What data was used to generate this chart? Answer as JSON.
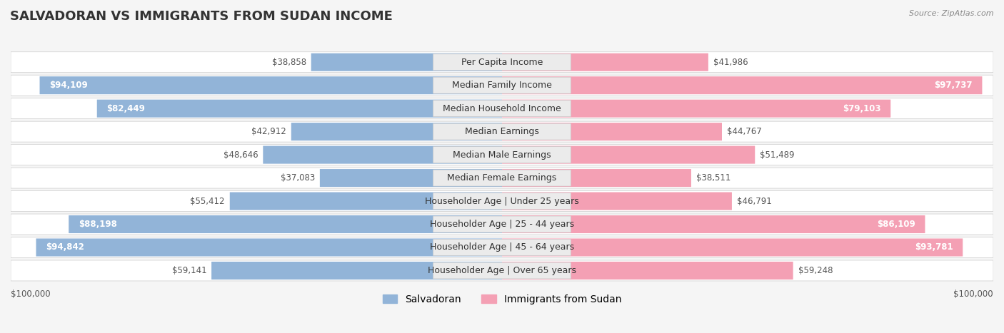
{
  "title": "SALVADORAN VS IMMIGRANTS FROM SUDAN INCOME",
  "source": "Source: ZipAtlas.com",
  "categories": [
    "Per Capita Income",
    "Median Family Income",
    "Median Household Income",
    "Median Earnings",
    "Median Male Earnings",
    "Median Female Earnings",
    "Householder Age | Under 25 years",
    "Householder Age | 25 - 44 years",
    "Householder Age | 45 - 64 years",
    "Householder Age | Over 65 years"
  ],
  "salvadoran_values": [
    38858,
    94109,
    82449,
    42912,
    48646,
    37083,
    55412,
    88198,
    94842,
    59141
  ],
  "sudan_values": [
    41986,
    97737,
    79103,
    44767,
    51489,
    38511,
    46791,
    86109,
    93781,
    59248
  ],
  "salvadoran_color": "#92b4d8",
  "sudan_color": "#f4a0b4",
  "salvadoran_color_dark": "#5a8fc0",
  "sudan_color_dark": "#e8607a",
  "max_value": 100000,
  "background_color": "#f5f5f5",
  "row_bg_color": "#ffffff",
  "label_bg_color": "#e8e8e8",
  "label_font_size": 9,
  "title_font_size": 13,
  "value_font_size": 8.5,
  "legend_font_size": 10
}
